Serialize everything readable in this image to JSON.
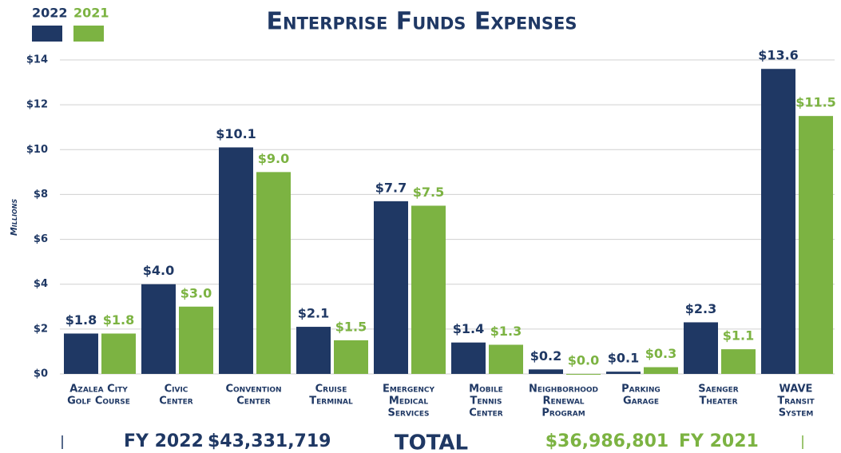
{
  "chart_data": {
    "type": "bar",
    "title": "Enterprise Funds Expenses",
    "y_label": "Millions",
    "categories": [
      [
        "Azalea City",
        "Golf Course"
      ],
      [
        "Civic",
        "Center"
      ],
      [
        "Convention",
        "Center"
      ],
      [
        "Cruise",
        "Terminal"
      ],
      [
        "Emergency",
        "Medical",
        "Services"
      ],
      [
        "Mobile",
        "Tennis",
        "Center"
      ],
      [
        "Neighborhood",
        "Renewal",
        "Program"
      ],
      [
        "Parking",
        "Garage"
      ],
      [
        "Saenger",
        "Theater"
      ],
      [
        "WAVE",
        "Transit",
        "System"
      ]
    ],
    "series": [
      {
        "name": "2022",
        "color": "#1f3864",
        "values": [
          1.8,
          4.0,
          10.1,
          2.1,
          7.7,
          1.4,
          0.2,
          0.1,
          2.3,
          13.6
        ],
        "value_labels": [
          "$1.8",
          "$4.0",
          "$10.1",
          "$2.1",
          "$7.7",
          "$1.4",
          "$0.2",
          "$0.1",
          "$2.3",
          "$13.6"
        ]
      },
      {
        "name": "2021",
        "color": "#7cb342",
        "values": [
          1.8,
          3.0,
          9.0,
          1.5,
          7.5,
          1.3,
          0.0,
          0.3,
          1.1,
          11.5
        ],
        "value_labels": [
          "$1.8",
          "$3.0",
          "$9.0",
          "$1.5",
          "$7.5",
          "$1.3",
          "$0.0",
          "$0.3",
          "$1.1",
          "$11.5"
        ]
      }
    ],
    "ylim": [
      0,
      14
    ],
    "yticks": [
      {
        "value": 0,
        "label": "$0"
      },
      {
        "value": 2,
        "label": "$2"
      },
      {
        "value": 4,
        "label": "$4"
      },
      {
        "value": 6,
        "label": "$6"
      },
      {
        "value": 8,
        "label": "$8"
      },
      {
        "value": 10,
        "label": "$10"
      },
      {
        "value": 12,
        "label": "$12"
      },
      {
        "value": 14,
        "label": "$14"
      }
    ],
    "grid": true,
    "annotations": [
      "FY 2022",
      "$43,331,719",
      "TOTAL",
      "$36,986,801",
      "FY 2021"
    ]
  }
}
